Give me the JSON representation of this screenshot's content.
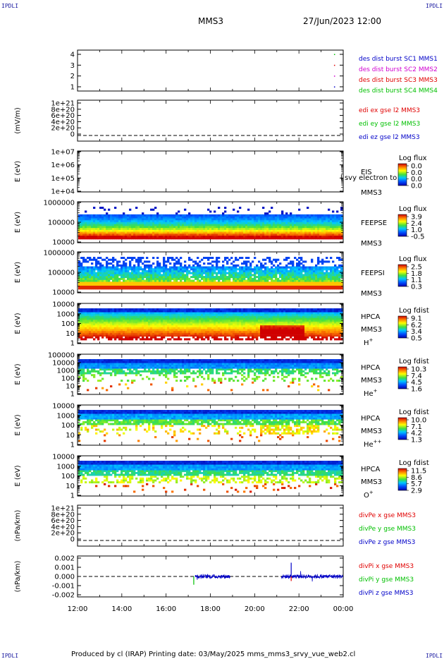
{
  "header": {
    "title": "MMS3",
    "datetime": "27/Jun/2023 12:00",
    "corner": "IPDLI"
  },
  "footer": {
    "text": "Produced by cl (IRAP)   Printing date: 03/May/2025   mms_mms3_srvy_vue_web2.cl"
  },
  "x_ticks": [
    "12:00",
    "14:00",
    "16:00",
    "18:00",
    "20:00",
    "22:00",
    "00:00"
  ],
  "colors": {
    "blue": "#0000c8",
    "magenta": "#d000d0",
    "red": "#e00000",
    "green": "#00c000"
  },
  "chart_data": [
    {
      "type": "scatter",
      "panel": "burst",
      "ylabel": "",
      "ylim": [
        0.5,
        4.5
      ],
      "yticks": [
        "4",
        "3",
        "2",
        "1"
      ],
      "legend": [
        {
          "text": "des dist burst SC1 MMS1",
          "color": "#0000c8"
        },
        {
          "text": "des dist burst SC2 MMS2",
          "color": "#d000d0"
        },
        {
          "text": "des dist burst SC3 MMS3",
          "color": "#e00000"
        },
        {
          "text": "des dist burst SC4 MMS4",
          "color": "#00c000"
        }
      ],
      "series": [
        {
          "name": "des dist burst SC1 MMS1",
          "x": [
            23.6
          ],
          "y": [
            1
          ]
        },
        {
          "name": "des dist burst SC2 MMS2",
          "x": [
            23.6
          ],
          "y": [
            2
          ]
        },
        {
          "name": "des dist burst SC3 MMS3",
          "x": [
            23.6
          ],
          "y": [
            3
          ]
        },
        {
          "name": "des dist burst SC4 MMS4",
          "x": [
            23.6
          ],
          "y": [
            4
          ]
        }
      ]
    },
    {
      "type": "line",
      "panel": "edi",
      "ylabel": "(mV/m)",
      "ylim": [
        -2e+20,
        1.1e+21
      ],
      "yticks": [
        "1e+21",
        "8e+20",
        "6e+20",
        "4e+20",
        "2e+20",
        "0"
      ],
      "legend": [
        {
          "text": "edi ex gse l2 MMS3",
          "color": "#e00000"
        },
        {
          "text": "edi ey gse l2 MMS3",
          "color": "#00c000"
        },
        {
          "text": "edi ez gse l2 MMS3",
          "color": "#0000c8"
        }
      ]
    },
    {
      "type": "heatmap",
      "panel": "eis",
      "ylabel": "E (eV)",
      "ylog": true,
      "ylim": [
        10000.0,
        10000000.0
      ],
      "yticks": [
        "1e+07",
        "1e+06",
        "1e+05",
        "1e+04"
      ],
      "labels": [
        "EIS",
        "MMS3"
      ],
      "overlay": "l svy electron to",
      "cbar": {
        "title": "Log flux",
        "ticks": [
          "0.0",
          "0.0",
          "0.0",
          "0.0"
        ]
      }
    },
    {
      "type": "heatmap",
      "panel": "feepse",
      "ylabel": "E (eV)",
      "ylog": true,
      "ylim": [
        10000.0,
        1000000.0
      ],
      "yticks": [
        "1000000",
        "100000",
        "10000"
      ],
      "labels": [
        "FEEPSE",
        "MMS3"
      ],
      "cbar": {
        "title": "Log flux",
        "ticks": [
          "3.9",
          "2.4",
          "1.0",
          "-0.5"
        ]
      }
    },
    {
      "type": "heatmap",
      "panel": "feepsi",
      "ylabel": "E (eV)",
      "ylog": true,
      "ylim": [
        10000.0,
        1000000.0
      ],
      "yticks": [
        "1000000",
        "100000",
        "10000"
      ],
      "labels": [
        "FEEPSI",
        "MMS3"
      ],
      "cbar": {
        "title": "Log flux",
        "ticks": [
          "2.5",
          "1.8",
          "1.1",
          "0.3"
        ]
      }
    },
    {
      "type": "heatmap",
      "panel": "hpca_h",
      "ylabel": "E (eV)",
      "ylog": true,
      "ylim": [
        1,
        10000.0
      ],
      "yticks": [
        "10000",
        "1000",
        "100",
        "10",
        "1"
      ],
      "labels": [
        "HPCA",
        "MMS3"
      ],
      "species": "H",
      "charge": "+",
      "cbar": {
        "title": "Log fdist",
        "ticks": [
          "9.1",
          "6.2",
          "3.4",
          "0.5"
        ]
      }
    },
    {
      "type": "heatmap",
      "panel": "hpca_he",
      "ylabel": "E (eV)",
      "ylog": true,
      "ylim": [
        1,
        100000.0
      ],
      "yticks": [
        "100000",
        "10000",
        "1000",
        "100",
        "10",
        "1"
      ],
      "labels": [
        "HPCA",
        "MMS3"
      ],
      "species": "He",
      "charge": "+",
      "cbar": {
        "title": "Log fdist",
        "ticks": [
          "10.3",
          "7.4",
          "4.5",
          "1.6"
        ]
      }
    },
    {
      "type": "heatmap",
      "panel": "hpca_hepp",
      "ylabel": "E (eV)",
      "ylog": true,
      "ylim": [
        1,
        10000.0
      ],
      "yticks": [
        "10000",
        "1000",
        "100",
        "10",
        "1"
      ],
      "labels": [
        "HPCA",
        "MMS3"
      ],
      "species": "He",
      "charge": "++",
      "cbar": {
        "title": "Log fdist",
        "ticks": [
          "10.0",
          "7.1",
          "4.2",
          "1.3"
        ]
      }
    },
    {
      "type": "heatmap",
      "panel": "hpca_o",
      "ylabel": "E (eV)",
      "ylog": true,
      "ylim": [
        1,
        10000.0
      ],
      "yticks": [
        "10000",
        "1000",
        "100",
        "10",
        "1"
      ],
      "labels": [
        "HPCA",
        "MMS3"
      ],
      "species": "O",
      "charge": "+",
      "cbar": {
        "title": "Log fdist",
        "ticks": [
          "11.5",
          "8.6",
          "5.7",
          "2.9"
        ]
      }
    },
    {
      "type": "line",
      "panel": "divpe",
      "ylabel": "(nPa/km)",
      "ylim": [
        -2e+20,
        1.1e+21
      ],
      "yticks": [
        "1e+21",
        "8e+20",
        "6e+20",
        "4e+20",
        "2e+20",
        "0"
      ],
      "legend": [
        {
          "text": "divPe x gse MMS3",
          "color": "#e00000"
        },
        {
          "text": "divPe y gse MMS3",
          "color": "#00c000"
        },
        {
          "text": "divPe z gse MMS3",
          "color": "#0000c8"
        }
      ]
    },
    {
      "type": "line",
      "panel": "divpi",
      "ylabel": "(nPa/km)",
      "ylim": [
        -0.002,
        0.002
      ],
      "yticks": [
        "0.002",
        "0.001",
        "0.000",
        "-0.001",
        "-0.002"
      ],
      "legend": [
        {
          "text": "divPi x gse MMS3",
          "color": "#e00000"
        },
        {
          "text": "divPi y gse MMS3",
          "color": "#00c000"
        },
        {
          "text": "divPi z gse MMS3",
          "color": "#0000c8"
        }
      ],
      "data_segments_hours": [
        [
          17.3,
          18.9
        ],
        [
          21.2,
          24.0
        ]
      ],
      "spikes": [
        {
          "x": 17.25,
          "y": -0.0009,
          "color": "#00c000"
        },
        {
          "x": 21.65,
          "y": 0.0015,
          "color": "#0000c8"
        },
        {
          "x": 21.65,
          "y": -0.0005,
          "color": "#e00000"
        }
      ]
    }
  ]
}
